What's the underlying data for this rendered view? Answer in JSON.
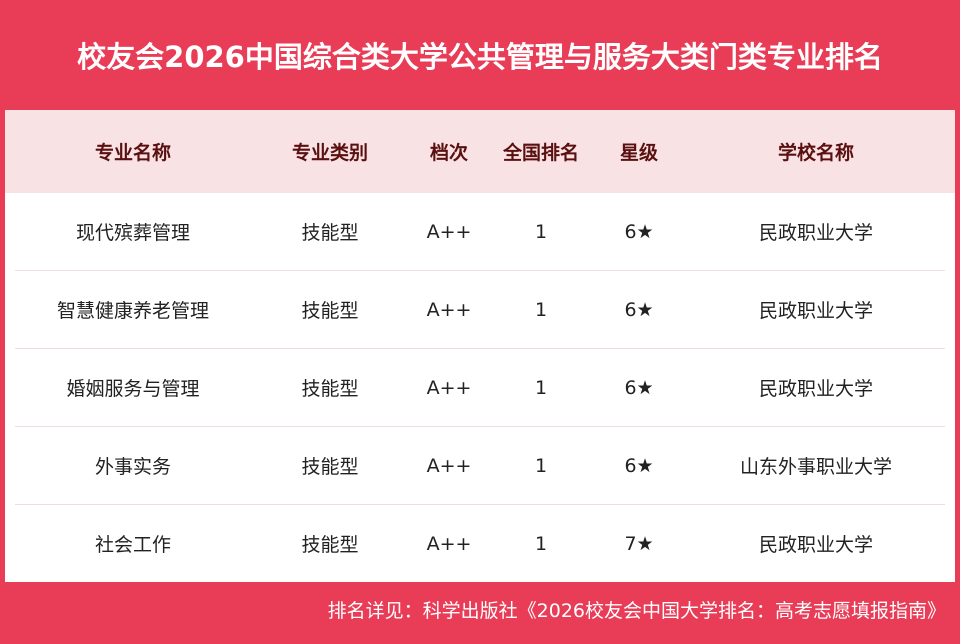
{
  "title": "校友会2026中国综合类大学公共管理与服务大类门类专业排名",
  "columns": [
    "专业名称",
    "专业类别",
    "档次",
    "全国排名",
    "星级",
    "学校名称"
  ],
  "rows": [
    [
      "现代殡葬管理",
      "技能型",
      "A++",
      "1",
      "6★",
      "民政职业大学"
    ],
    [
      "智慧健康养老管理",
      "技能型",
      "A++",
      "1",
      "6★",
      "民政职业大学"
    ],
    [
      "婚姻服务与管理",
      "技能型",
      "A++",
      "1",
      "6★",
      "民政职业大学"
    ],
    [
      "外事实务",
      "技能型",
      "A++",
      "1",
      "6★",
      "山东外事职业大学"
    ],
    [
      "社会工作",
      "技能型",
      "A++",
      "1",
      "7★",
      "民政职业大学"
    ]
  ],
  "footer": "排名详见：科学出版社《2026校友会中国大学排名：高考志愿填报指南》",
  "colors": {
    "accent": "#e83c57",
    "header_bg": "#f9e2e4",
    "header_text": "#5a1010"
  }
}
